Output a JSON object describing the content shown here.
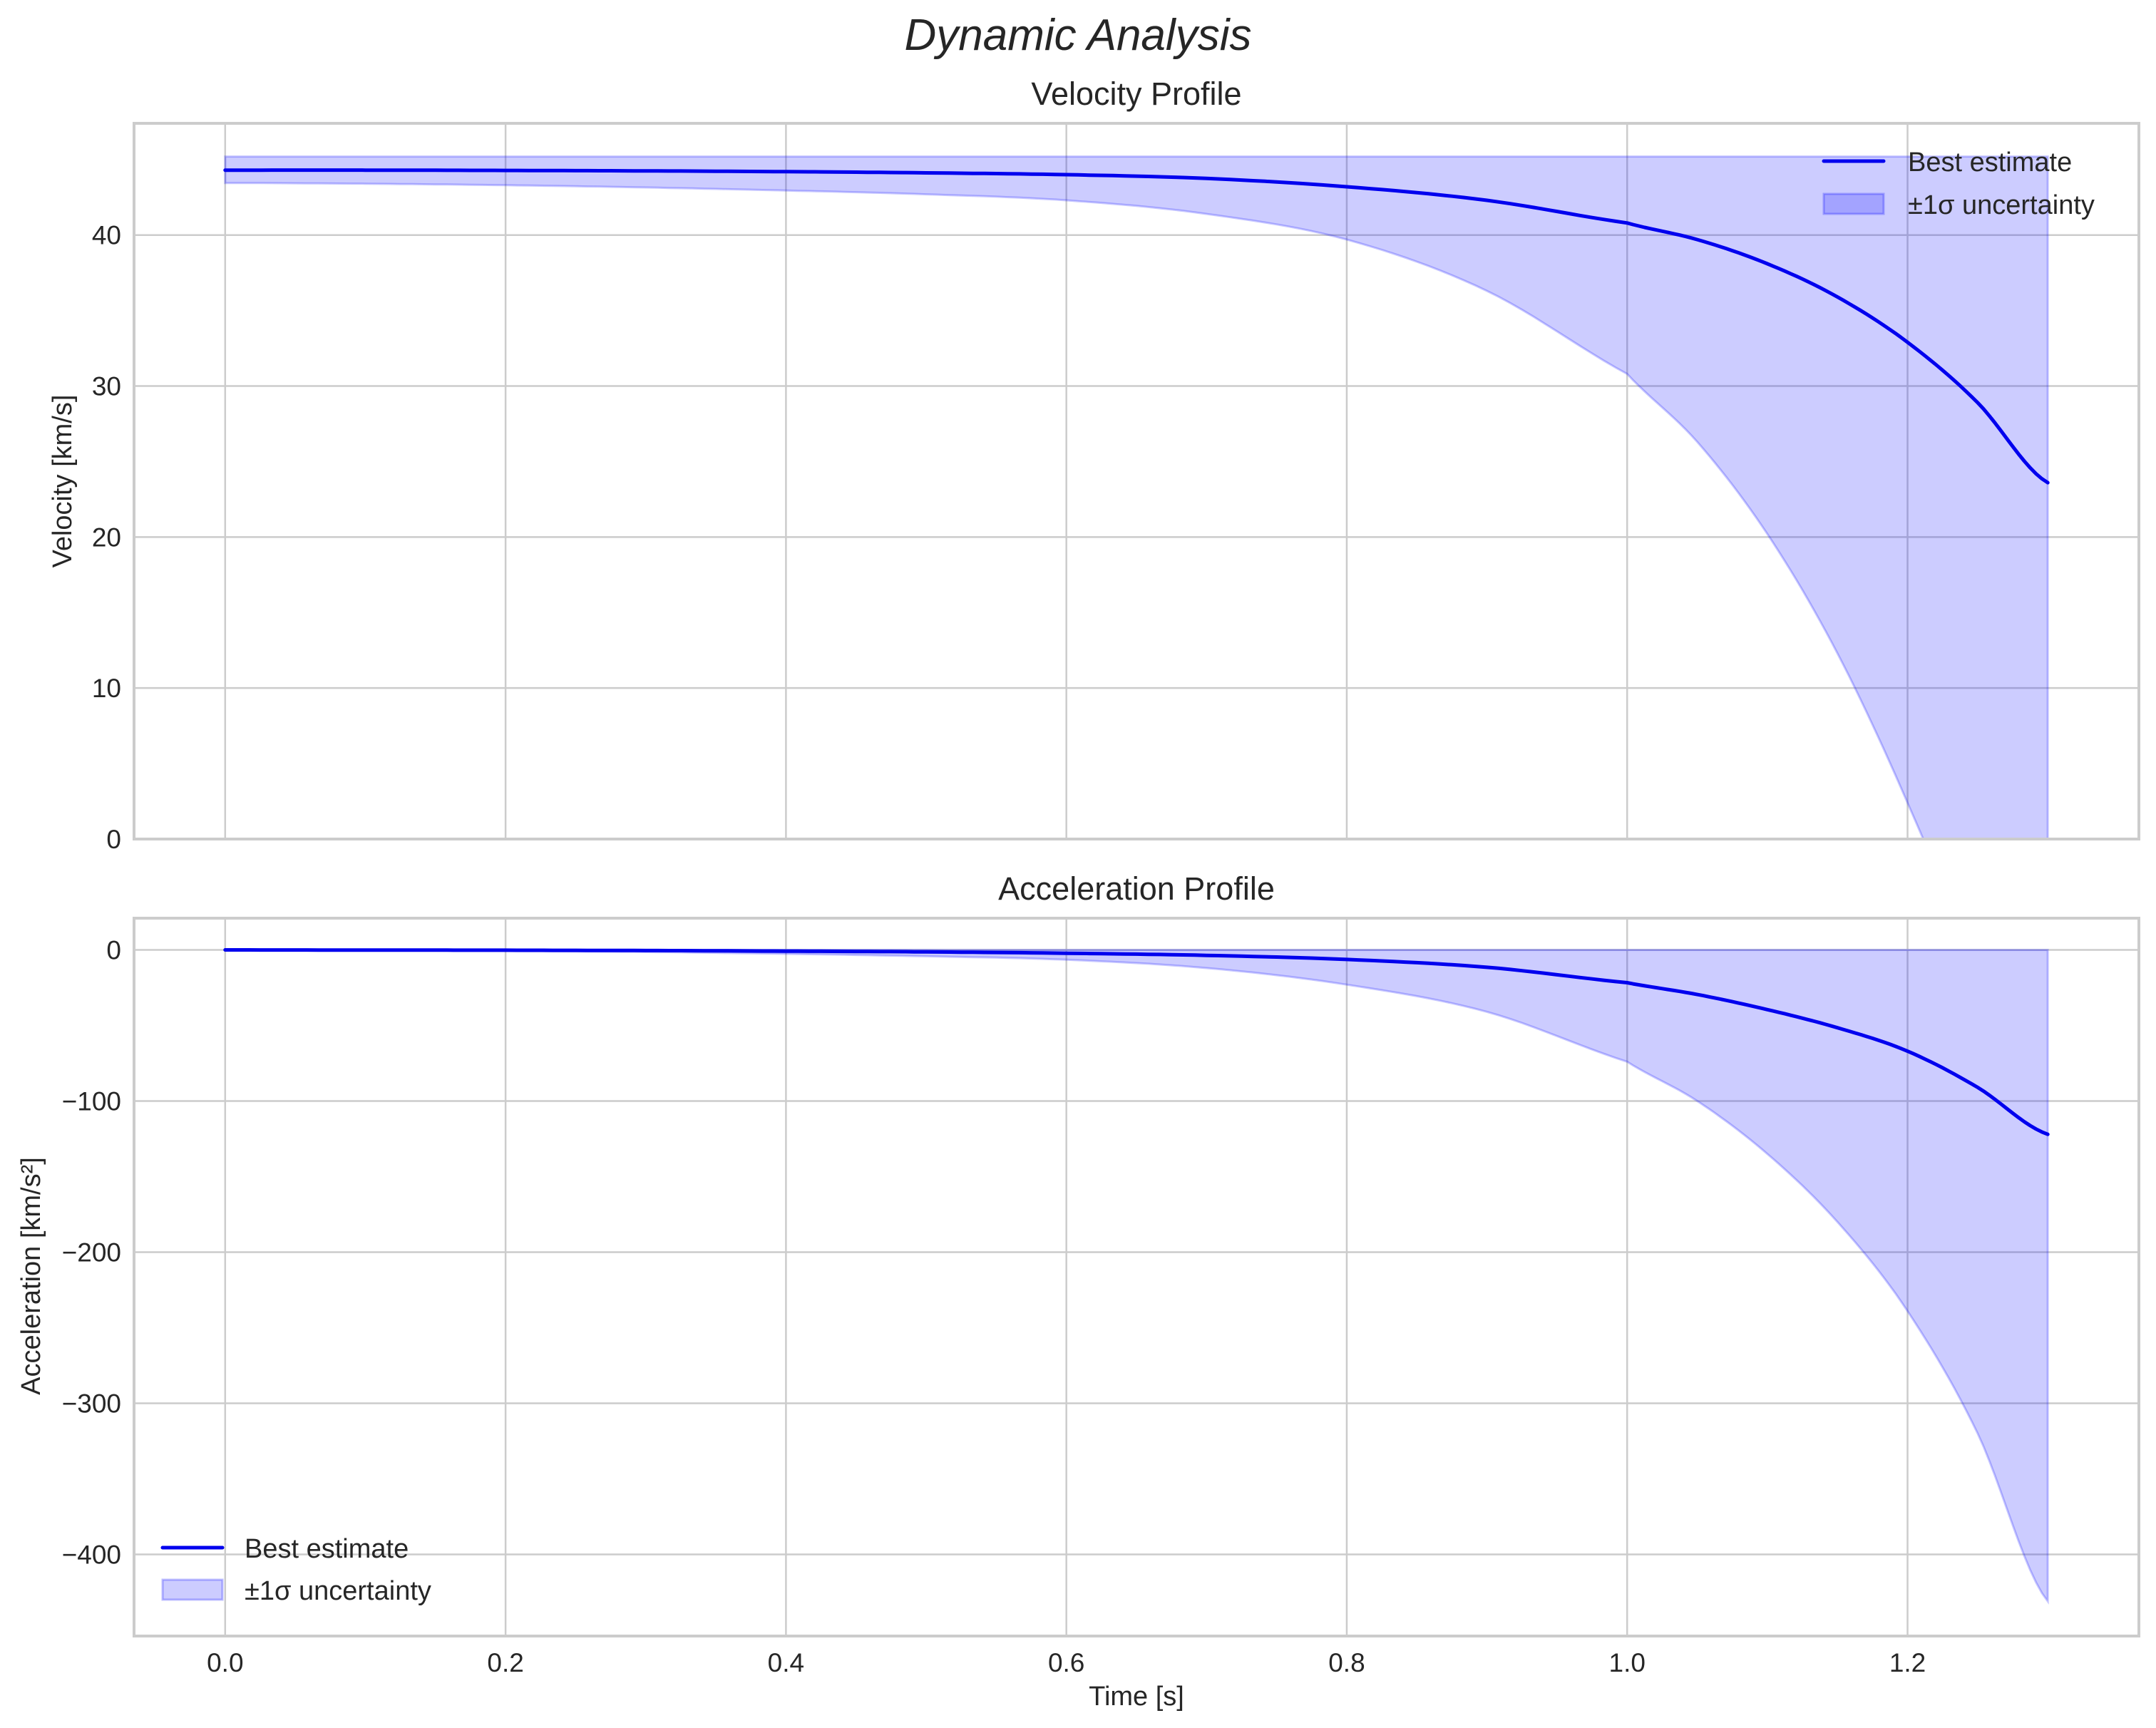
{
  "figure": {
    "suptitle": "Dynamic Analysis",
    "xlabel": "Time [s]"
  },
  "chart_data": [
    {
      "type": "line",
      "title": "Velocity Profile",
      "xlabel": "",
      "ylabel": "Velocity [km/s]",
      "xlim": [
        -0.065,
        1.365
      ],
      "ylim": [
        0,
        47.4
      ],
      "xticks": [
        0.0,
        0.2,
        0.4,
        0.6,
        0.8,
        1.0,
        1.2
      ],
      "xtick_labels": [
        "0.0",
        "0.2",
        "0.4",
        "0.6",
        "0.8",
        "1.0",
        "1.2"
      ],
      "yticks": [
        0,
        10,
        20,
        30,
        40
      ],
      "ytick_labels": [
        "0",
        "10",
        "20",
        "30",
        "40"
      ],
      "grid": true,
      "legend_position": "upper right",
      "legend": [
        "Best estimate",
        "±1σ uncertainty"
      ],
      "x": [
        0.0,
        0.1,
        0.2,
        0.3,
        0.4,
        0.5,
        0.6,
        0.7,
        0.8,
        0.9,
        1.0,
        1.05,
        1.1,
        1.15,
        1.2,
        1.25,
        1.3
      ],
      "series": [
        {
          "name": "Best estimate",
          "kind": "line",
          "color": "#0000ee",
          "values": [
            44.3,
            44.3,
            44.28,
            44.25,
            44.2,
            44.12,
            44.0,
            43.75,
            43.2,
            42.3,
            40.8,
            39.7,
            38.1,
            35.9,
            32.9,
            28.9,
            23.6
          ]
        },
        {
          "name": "±1σ uncertainty upper",
          "kind": "band-upper",
          "color": "#0000ff",
          "values": [
            45.2,
            45.2,
            45.2,
            45.2,
            45.2,
            45.2,
            45.2,
            45.2,
            45.2,
            45.2,
            45.2,
            45.2,
            45.2,
            45.2,
            45.2,
            45.2,
            45.2
          ]
        },
        {
          "name": "±1σ uncertainty lower",
          "kind": "band-lower",
          "color": "#0000ff",
          "values": [
            43.45,
            43.4,
            43.3,
            43.15,
            42.95,
            42.7,
            42.3,
            41.4,
            39.7,
            36.3,
            30.8,
            26.3,
            20.2,
            12.3,
            2.4,
            -9.0,
            -23.0
          ]
        }
      ]
    },
    {
      "type": "line",
      "title": "Acceleration Profile",
      "xlabel": "Time [s]",
      "ylabel": "Acceleration [km/s²]",
      "xlim": [
        -0.065,
        1.365
      ],
      "ylim": [
        -454,
        21
      ],
      "xticks": [
        0.0,
        0.2,
        0.4,
        0.6,
        0.8,
        1.0,
        1.2
      ],
      "xtick_labels": [
        "0.0",
        "0.2",
        "0.4",
        "0.6",
        "0.8",
        "1.0",
        "1.2"
      ],
      "yticks": [
        0,
        -100,
        -200,
        -300,
        -400
      ],
      "ytick_labels": [
        "0",
        "−100",
        "−200",
        "−300",
        "−400"
      ],
      "grid": true,
      "legend_position": "lower left",
      "legend": [
        "Best estimate",
        "±1σ uncertainty"
      ],
      "x": [
        0.0,
        0.1,
        0.2,
        0.3,
        0.4,
        0.5,
        0.6,
        0.7,
        0.8,
        0.9,
        1.0,
        1.05,
        1.1,
        1.15,
        1.2,
        1.25,
        1.3
      ],
      "series": [
        {
          "name": "Best estimate",
          "kind": "line",
          "color": "#0000ee",
          "values": [
            0.0,
            -0.1,
            -0.2,
            -0.4,
            -0.8,
            -1.3,
            -2.2,
            -3.6,
            -6.3,
            -11.5,
            -21.7,
            -29.5,
            -39.5,
            -51.5,
            -67.0,
            -91.0,
            -122.0
          ]
        },
        {
          "name": "±1σ uncertainty upper",
          "kind": "band-upper",
          "color": "#0000ff",
          "values": [
            0,
            0,
            0,
            0,
            0,
            0,
            0,
            0,
            0,
            0,
            0,
            0,
            0,
            0,
            0,
            0,
            0
          ]
        },
        {
          "name": "±1σ uncertainty lower",
          "kind": "band-lower",
          "color": "#0000ff",
          "values": [
            0.0,
            -0.3,
            -0.7,
            -1.4,
            -2.6,
            -4.2,
            -6.5,
            -12.0,
            -23.0,
            -41.0,
            -74.0,
            -100.0,
            -135.0,
            -180.0,
            -239.0,
            -320.0,
            -431.0
          ]
        }
      ]
    }
  ],
  "colors": {
    "line": "#0000ee",
    "band_fill": "rgba(0,0,255,0.2)",
    "grid": "#cccccc",
    "axes_edge": "#cccccc",
    "text": "#262626"
  }
}
